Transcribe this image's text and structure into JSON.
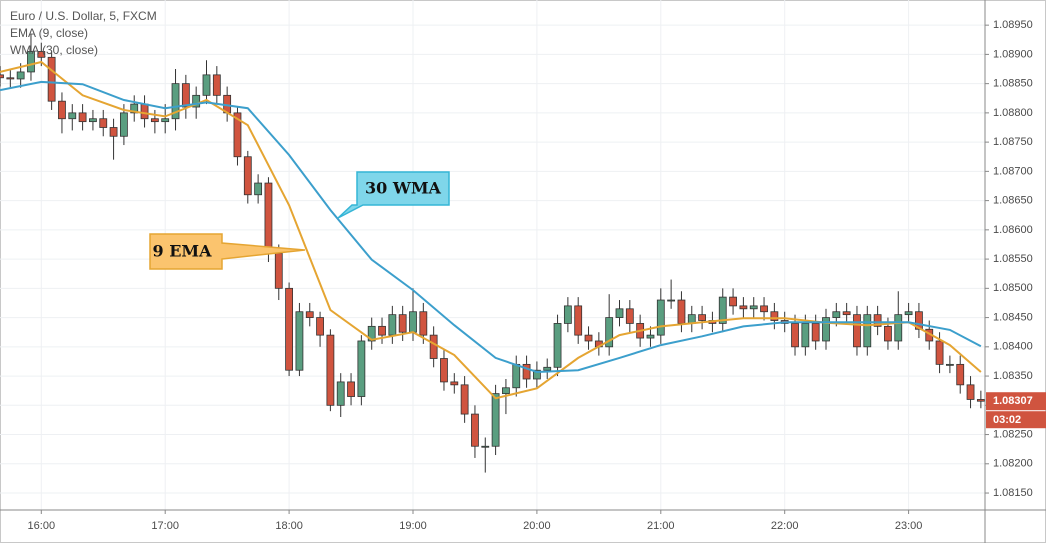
{
  "chart_data": {
    "type": "candlestick",
    "title": "Euro / U.S. Dollar, 5, FXCM",
    "up_color": "#5a9e80",
    "down_color": "#d0543f",
    "grid": true,
    "x": [
      "15:40",
      "15:45",
      "15:50",
      "15:55",
      "16:00",
      "16:05",
      "16:10",
      "16:15",
      "16:20",
      "16:25",
      "16:30",
      "16:35",
      "16:40",
      "16:45",
      "16:50",
      "16:55",
      "17:00",
      "17:05",
      "17:10",
      "17:15",
      "17:20",
      "17:25",
      "17:30",
      "17:35",
      "17:40",
      "17:45",
      "17:50",
      "17:55",
      "18:00",
      "18:05",
      "18:10",
      "18:15",
      "18:20",
      "18:25",
      "18:30",
      "18:35",
      "18:40",
      "18:45",
      "18:50",
      "18:55",
      "19:00",
      "19:05",
      "19:10",
      "19:15",
      "19:20",
      "19:25",
      "19:30",
      "19:35",
      "19:40",
      "19:45",
      "19:50",
      "19:55",
      "20:00",
      "20:05",
      "20:10",
      "20:15",
      "20:20",
      "20:25",
      "20:30",
      "20:35",
      "20:40",
      "20:45",
      "20:50",
      "20:55",
      "21:00",
      "21:05",
      "21:10",
      "21:15",
      "21:20",
      "21:25",
      "21:30",
      "21:35",
      "21:40",
      "21:45",
      "21:50",
      "21:55",
      "22:00",
      "22:05",
      "22:10",
      "22:15",
      "22:20",
      "22:25",
      "22:30",
      "22:35",
      "22:40",
      "22:45",
      "22:50",
      "22:55",
      "23:00",
      "23:05",
      "23:10",
      "23:15",
      "23:20",
      "23:25",
      "23:30",
      "23:35"
    ],
    "open": [
      1.08865,
      1.0886,
      1.08858,
      1.0887,
      1.08905,
      1.08895,
      1.0882,
      1.0879,
      1.088,
      1.08785,
      1.0879,
      1.08775,
      1.0876,
      1.088,
      1.08815,
      1.0879,
      1.08785,
      1.0879,
      1.0885,
      1.0881,
      1.0883,
      1.08865,
      1.0883,
      1.088,
      1.08725,
      1.0866,
      1.0868,
      1.0856,
      1.085,
      1.0836,
      1.0846,
      1.0845,
      1.0842,
      1.083,
      1.0834,
      1.08315,
      1.0841,
      1.08435,
      1.0842,
      1.08455,
      1.08425,
      1.0846,
      1.0842,
      1.0838,
      1.0834,
      1.08335,
      1.08285,
      1.0823,
      1.0823,
      1.0832,
      1.0833,
      1.0837,
      1.08345,
      1.0836,
      1.08365,
      1.0844,
      1.0847,
      1.0842,
      1.0841,
      1.084,
      1.0845,
      1.08465,
      1.0844,
      1.08415,
      1.0842,
      1.0848,
      1.0848,
      1.0844,
      1.08455,
      1.08445,
      1.0844,
      1.08485,
      1.0847,
      1.08465,
      1.0847,
      1.0846,
      1.08445,
      1.0844,
      1.084,
      1.0844,
      1.0841,
      1.0845,
      1.0846,
      1.08455,
      1.084,
      1.08455,
      1.08435,
      1.0841,
      1.08455,
      1.0846,
      1.0843,
      1.0841,
      1.0837,
      1.0837,
      1.08335,
      1.0831
    ],
    "high": [
      1.0888,
      1.08875,
      1.08885,
      1.08935,
      1.0892,
      1.08905,
      1.08835,
      1.08815,
      1.08815,
      1.08805,
      1.08805,
      1.0879,
      1.08815,
      1.0883,
      1.0883,
      1.08805,
      1.08815,
      1.08875,
      1.08865,
      1.08845,
      1.0889,
      1.0888,
      1.08845,
      1.0881,
      1.08735,
      1.08695,
      1.0869,
      1.08575,
      1.0851,
      1.08475,
      1.08475,
      1.0846,
      1.0843,
      1.08355,
      1.08355,
      1.0842,
      1.0845,
      1.0845,
      1.0847,
      1.0847,
      1.085,
      1.08475,
      1.08435,
      1.08395,
      1.08355,
      1.0835,
      1.083,
      1.08245,
      1.08335,
      1.08345,
      1.08385,
      1.08385,
      1.08375,
      1.0838,
      1.08455,
      1.08485,
      1.08485,
      1.08435,
      1.08425,
      1.0849,
      1.0848,
      1.0848,
      1.08455,
      1.08435,
      1.085,
      1.08515,
      1.08495,
      1.0847,
      1.0847,
      1.0846,
      1.085,
      1.085,
      1.08485,
      1.08485,
      1.08485,
      1.08475,
      1.0846,
      1.08455,
      1.08455,
      1.08455,
      1.08465,
      1.08475,
      1.08475,
      1.0847,
      1.0847,
      1.0847,
      1.0845,
      1.08495,
      1.08475,
      1.08475,
      1.08445,
      1.08425,
      1.08385,
      1.08385,
      1.0835,
      1.08325
    ],
    "low": [
      1.08845,
      1.08843,
      1.08843,
      1.08855,
      1.0888,
      1.08805,
      1.08765,
      1.0877,
      1.0877,
      1.0877,
      1.0876,
      1.0872,
      1.08745,
      1.08785,
      1.08775,
      1.08765,
      1.08765,
      1.0877,
      1.0879,
      1.0879,
      1.08815,
      1.08815,
      1.08785,
      1.0871,
      1.08645,
      1.08645,
      1.08545,
      1.0848,
      1.0835,
      1.0835,
      1.08435,
      1.084,
      1.0829,
      1.0828,
      1.083,
      1.083,
      1.08395,
      1.08405,
      1.08405,
      1.0841,
      1.0841,
      1.08405,
      1.08365,
      1.08325,
      1.0832,
      1.0827,
      1.0821,
      1.08185,
      1.08215,
      1.08285,
      1.08315,
      1.0833,
      1.0833,
      1.08345,
      1.0835,
      1.08425,
      1.08405,
      1.08395,
      1.08385,
      1.08385,
      1.08435,
      1.08425,
      1.084,
      1.084,
      1.08405,
      1.08465,
      1.08425,
      1.08425,
      1.0843,
      1.08425,
      1.08425,
      1.08455,
      1.0845,
      1.0845,
      1.08445,
      1.0843,
      1.08425,
      1.08385,
      1.08385,
      1.08395,
      1.08395,
      1.08435,
      1.0844,
      1.08385,
      1.08385,
      1.0842,
      1.08395,
      1.08395,
      1.0844,
      1.08415,
      1.08395,
      1.08355,
      1.08355,
      1.0832,
      1.08295,
      1.08295
    ],
    "close": [
      1.0886,
      1.08858,
      1.0887,
      1.08905,
      1.08895,
      1.0882,
      1.0879,
      1.088,
      1.08785,
      1.0879,
      1.08775,
      1.0876,
      1.088,
      1.08815,
      1.0879,
      1.08785,
      1.0879,
      1.0885,
      1.0881,
      1.0883,
      1.08865,
      1.0883,
      1.088,
      1.08725,
      1.0866,
      1.0868,
      1.0856,
      1.085,
      1.0836,
      1.0846,
      1.0845,
      1.0842,
      1.083,
      1.0834,
      1.08315,
      1.0841,
      1.08435,
      1.0842,
      1.08455,
      1.08425,
      1.0846,
      1.0842,
      1.0838,
      1.0834,
      1.08335,
      1.08285,
      1.0823,
      1.0823,
      1.0832,
      1.0833,
      1.0837,
      1.08345,
      1.0836,
      1.08365,
      1.0844,
      1.0847,
      1.0842,
      1.0841,
      1.084,
      1.0845,
      1.08465,
      1.0844,
      1.08415,
      1.0842,
      1.0848,
      1.0848,
      1.0844,
      1.08455,
      1.08445,
      1.0844,
      1.08485,
      1.0847,
      1.08465,
      1.0847,
      1.0846,
      1.08445,
      1.0844,
      1.084,
      1.0844,
      1.0841,
      1.0845,
      1.0846,
      1.08455,
      1.084,
      1.08455,
      1.08435,
      1.0841,
      1.08455,
      1.0846,
      1.0843,
      1.0841,
      1.0837,
      1.0837,
      1.08335,
      1.0831,
      1.08307
    ],
    "overlays": [
      {
        "name": "EMA (9, close)",
        "color": "#e5a532",
        "x": [
          "15:40",
          "16:00",
          "16:20",
          "16:40",
          "17:00",
          "17:20",
          "17:40",
          "18:00",
          "18:20",
          "18:40",
          "19:00",
          "19:20",
          "19:40",
          "20:00",
          "20:20",
          "20:40",
          "21:00",
          "21:20",
          "21:40",
          "22:00",
          "22:20",
          "22:40",
          "23:00",
          "23:20",
          "23:35"
        ],
        "values": [
          1.0887,
          1.08887,
          1.0883,
          1.08805,
          1.08794,
          1.08822,
          1.08779,
          1.08642,
          1.08463,
          1.08412,
          1.08425,
          1.08386,
          1.08312,
          1.08329,
          1.08381,
          1.0842,
          1.08435,
          1.08442,
          1.08449,
          1.08449,
          1.08441,
          1.08437,
          1.08442,
          1.08403,
          1.08357
        ]
      },
      {
        "name": "WMA (30, close)",
        "color": "#3c9fcc",
        "x": [
          "15:40",
          "16:00",
          "16:20",
          "16:40",
          "17:00",
          "17:20",
          "17:40",
          "18:00",
          "18:20",
          "18:40",
          "19:00",
          "19:20",
          "19:40",
          "20:00",
          "20:20",
          "20:40",
          "21:00",
          "21:20",
          "21:40",
          "22:00",
          "22:20",
          "22:40",
          "23:00",
          "23:20",
          "23:35"
        ],
        "values": [
          1.08839,
          1.08853,
          1.08849,
          1.08822,
          1.08808,
          1.08818,
          1.08808,
          1.08728,
          1.08634,
          1.08549,
          1.08497,
          1.08437,
          1.08381,
          1.08357,
          1.0836,
          1.08381,
          1.08403,
          1.08418,
          1.08435,
          1.08442,
          1.08442,
          1.08442,
          1.08442,
          1.08429,
          1.08401
        ]
      }
    ],
    "annotations": [
      {
        "text": "30 WMA"
      },
      {
        "text": "9 EMA"
      }
    ],
    "last_price": 1.08307,
    "countdown": "03:02",
    "xlim": [
      "15:40",
      "23:37"
    ],
    "xticks": [
      "16:00",
      "17:00",
      "18:00",
      "19:00",
      "20:00",
      "21:00",
      "22:00",
      "23:00"
    ],
    "ylim": [
      1.08121,
      1.08993
    ],
    "yticks": [
      {
        "value": 1.0815,
        "label": "1.08150"
      },
      {
        "value": 1.082,
        "label": "1.08200"
      },
      {
        "value": 1.0825,
        "label": "1.08250"
      },
      {
        "value": 1.083,
        "label": "1.08300"
      },
      {
        "value": 1.0835,
        "label": "1.08350"
      },
      {
        "value": 1.084,
        "label": "1.08400"
      },
      {
        "value": 1.0845,
        "label": "1.08450"
      },
      {
        "value": 1.085,
        "label": "1.08500"
      },
      {
        "value": 1.0855,
        "label": "1.08550"
      },
      {
        "value": 1.086,
        "label": "1.08600"
      },
      {
        "value": 1.0865,
        "label": "1.08650"
      },
      {
        "value": 1.087,
        "label": "1.08700"
      },
      {
        "value": 1.0875,
        "label": "1.08750"
      },
      {
        "value": 1.088,
        "label": "1.08800"
      },
      {
        "value": 1.0885,
        "label": "1.08850"
      },
      {
        "value": 1.089,
        "label": "1.08900"
      },
      {
        "value": 1.0895,
        "label": "1.08950"
      }
    ]
  }
}
